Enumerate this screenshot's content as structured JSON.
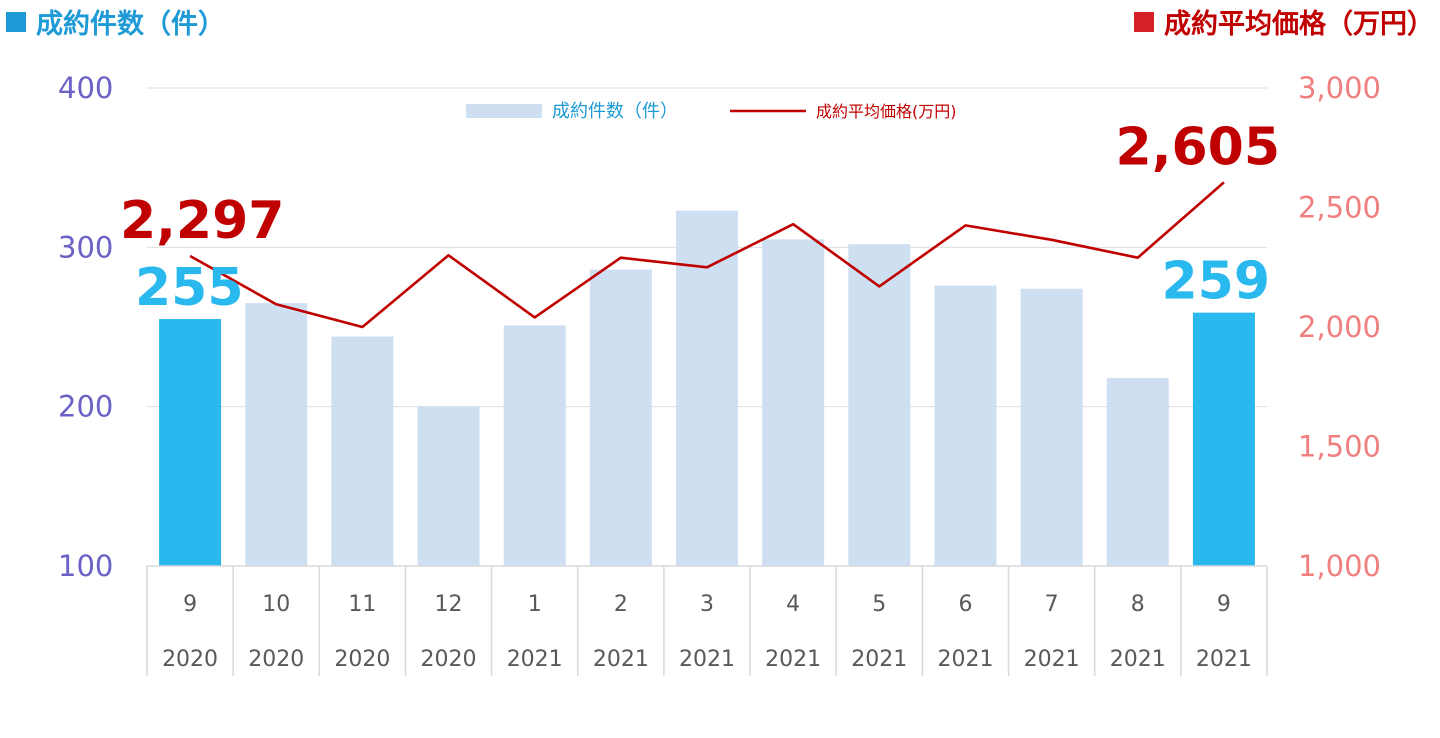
{
  "header": {
    "left_title": "成約件数（件）",
    "right_title": "成約平均価格（万円）"
  },
  "legend": {
    "bar_label": "成約件数（件）",
    "line_label": "成約平均価格(万円)"
  },
  "colors": {
    "bar_normal": "#cfdff2",
    "bar_highlight": "#29b9ee",
    "line": "#c00000",
    "left_axis": "#6a62c4",
    "right_axis": "#f08080",
    "grid": "#dddddd",
    "header_left": "#1e9ad6",
    "header_right": "#c00000",
    "callout_bar": "#29b9ee",
    "callout_line": "#c00000"
  },
  "chart_data": {
    "type": "bar",
    "x_month": [
      "9",
      "10",
      "11",
      "12",
      "1",
      "2",
      "3",
      "4",
      "5",
      "6",
      "7",
      "8",
      "9"
    ],
    "x_year": [
      "2020",
      "2020",
      "2020",
      "2020",
      "2021",
      "2021",
      "2021",
      "2021",
      "2021",
      "2021",
      "2021",
      "2021",
      "2021"
    ],
    "highlight_indices": [
      0,
      12
    ],
    "series": [
      {
        "name": "成約件数（件）",
        "type": "bar",
        "axis": "left",
        "values": [
          255,
          265,
          244,
          200,
          251,
          286,
          323,
          305,
          302,
          276,
          274,
          218,
          259
        ]
      },
      {
        "name": "成約平均価格(万円)",
        "type": "line",
        "axis": "right",
        "values": [
          2297,
          2095,
          2000,
          2300,
          2040,
          2290,
          2250,
          2430,
          2170,
          2425,
          2365,
          2290,
          2605
        ]
      }
    ],
    "y_left": {
      "lim": [
        100,
        400
      ],
      "ticks": [
        "100",
        "200",
        "300",
        "400"
      ],
      "tick_values": [
        100,
        200,
        300,
        400
      ]
    },
    "y_right": {
      "lim": [
        1000,
        3000
      ],
      "ticks": [
        "1,000",
        "1,500",
        "2,000",
        "2,500",
        "3,000"
      ],
      "tick_values": [
        1000,
        1500,
        2000,
        2500,
        3000
      ]
    },
    "grid": true,
    "legend_position": "top-center",
    "annotations": [
      {
        "series": "bar",
        "index": 0,
        "text": "255"
      },
      {
        "series": "bar",
        "index": 12,
        "text": "259"
      },
      {
        "series": "line",
        "index": 0,
        "text": "2,297"
      },
      {
        "series": "line",
        "index": 12,
        "text": "2,605"
      }
    ]
  }
}
